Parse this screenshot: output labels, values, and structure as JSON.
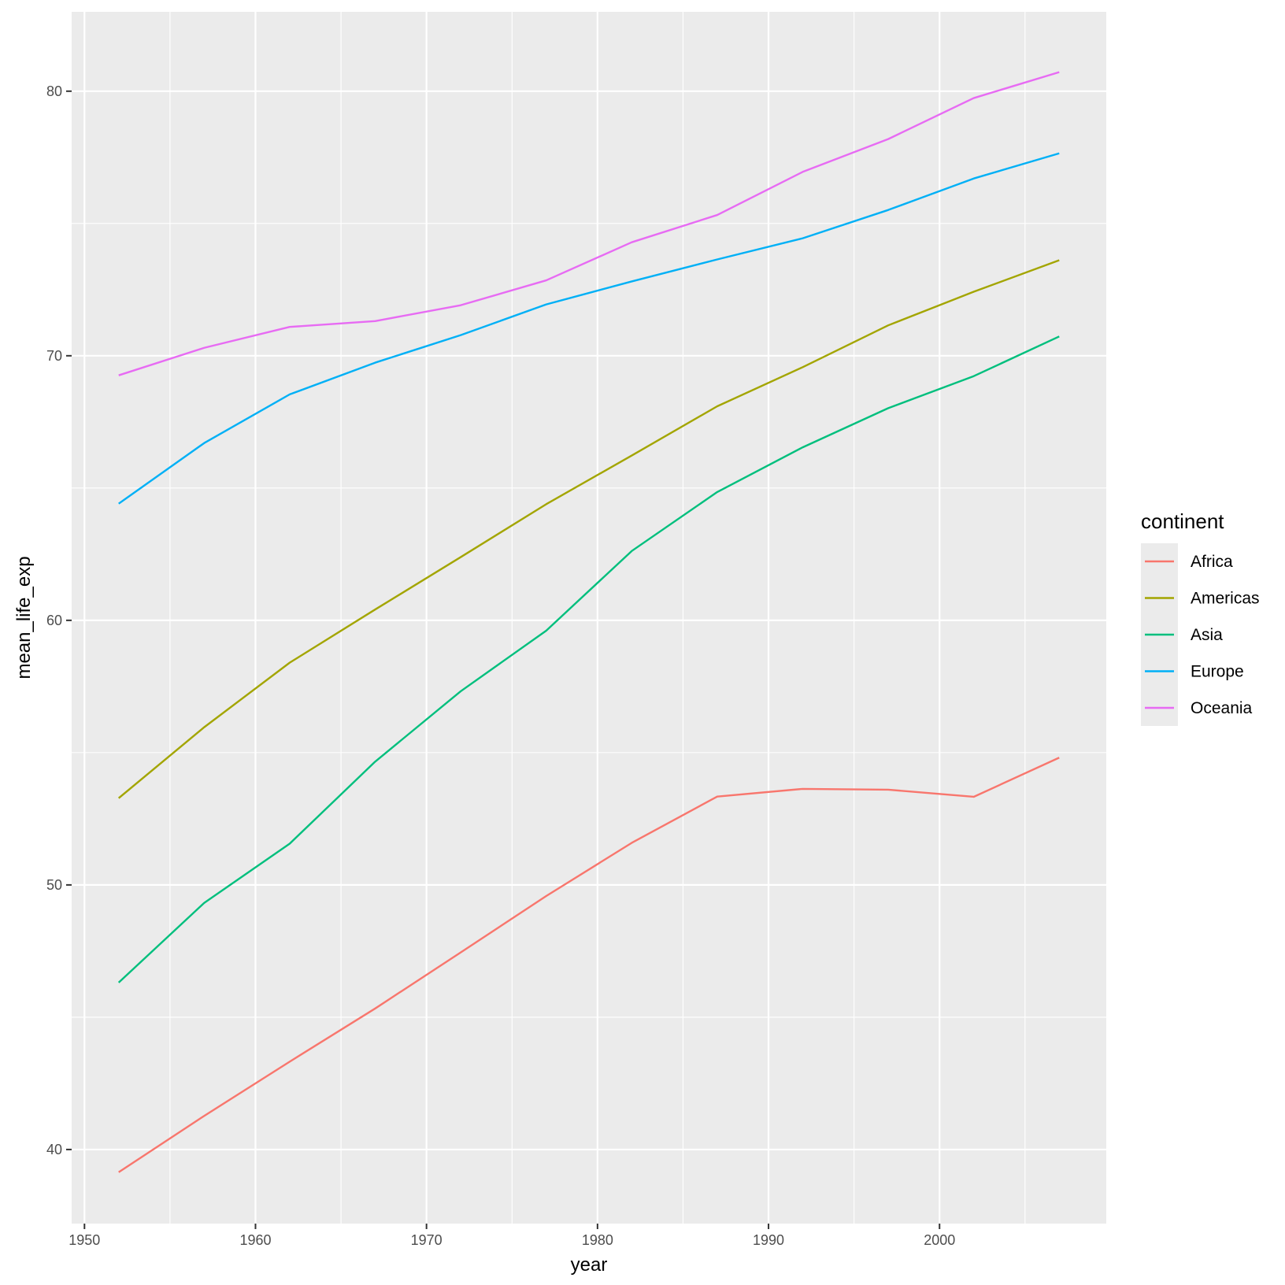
{
  "chart_data": {
    "type": "line",
    "xlabel": "year",
    "ylabel": "mean_life_exp",
    "xlim": [
      1949.25,
      2009.75
    ],
    "ylim": [
      37.2,
      83.0
    ],
    "x_ticks": [
      1950,
      1960,
      1970,
      1980,
      1990,
      2000
    ],
    "x_tick_labels": [
      "1950",
      "1960",
      "1970",
      "1980",
      "1990",
      "2000"
    ],
    "y_ticks": [
      40,
      50,
      60,
      70,
      80
    ],
    "y_tick_labels": [
      "40",
      "50",
      "60",
      "70",
      "80"
    ],
    "grid": true,
    "background": "#ebebeb",
    "legend": {
      "title": "continent",
      "position": "right"
    },
    "x": [
      1952,
      1957,
      1962,
      1967,
      1972,
      1977,
      1982,
      1987,
      1992,
      1997,
      2002,
      2007
    ],
    "series": [
      {
        "name": "Africa",
        "color": "#F8766D",
        "values": [
          39.14,
          41.27,
          43.32,
          45.33,
          47.45,
          49.58,
          51.59,
          53.34,
          53.63,
          53.6,
          53.33,
          54.81
        ]
      },
      {
        "name": "Americas",
        "color": "#A3A500",
        "values": [
          53.28,
          55.96,
          58.4,
          60.41,
          62.39,
          64.39,
          66.23,
          68.09,
          69.57,
          71.15,
          72.42,
          73.61
        ]
      },
      {
        "name": "Asia",
        "color": "#00BF7D",
        "values": [
          46.31,
          49.32,
          51.56,
          54.66,
          57.32,
          59.61,
          62.62,
          64.85,
          66.54,
          68.02,
          69.23,
          70.73
        ]
      },
      {
        "name": "Europe",
        "color": "#00B0F6",
        "values": [
          64.41,
          66.7,
          68.54,
          69.74,
          70.78,
          71.94,
          72.81,
          73.64,
          74.44,
          75.51,
          76.7,
          77.65
        ]
      },
      {
        "name": "Oceania",
        "color": "#E76BF3",
        "values": [
          69.26,
          70.3,
          71.09,
          71.31,
          71.91,
          72.85,
          74.29,
          75.32,
          76.95,
          78.19,
          79.74,
          80.72
        ]
      }
    ]
  }
}
